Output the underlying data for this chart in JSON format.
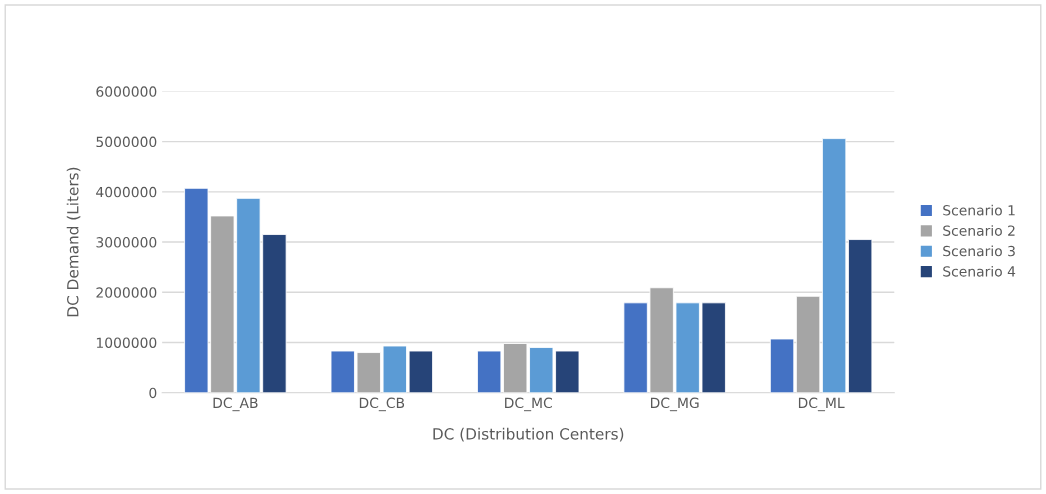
{
  "chart_data": {
    "type": "bar",
    "xlabel": "DC (Distribution Centers)",
    "ylabel": "DC Demand (Liters)",
    "categories": [
      "DC_AB",
      "DC_CB",
      "DC_MC",
      "DC_MG",
      "DC_ML"
    ],
    "series": [
      {
        "name": "Scenario 1",
        "color": "#4472c4",
        "values": [
          4070000,
          830000,
          830000,
          1790000,
          1070000
        ]
      },
      {
        "name": "Scenario 2",
        "color": "#a5a5a5",
        "values": [
          3520000,
          800000,
          980000,
          2090000,
          1920000
        ]
      },
      {
        "name": "Scenario 3",
        "color": "#5b9bd5",
        "values": [
          3870000,
          930000,
          900000,
          1790000,
          5060000
        ]
      },
      {
        "name": "Scenario 4",
        "color": "#264478",
        "values": [
          3150000,
          830000,
          830000,
          1790000,
          3050000
        ]
      }
    ],
    "ylim": [
      0,
      6000000
    ],
    "yticks": [
      0,
      1000000,
      2000000,
      3000000,
      4000000,
      5000000,
      6000000
    ],
    "grid": "y",
    "legend": "right"
  }
}
